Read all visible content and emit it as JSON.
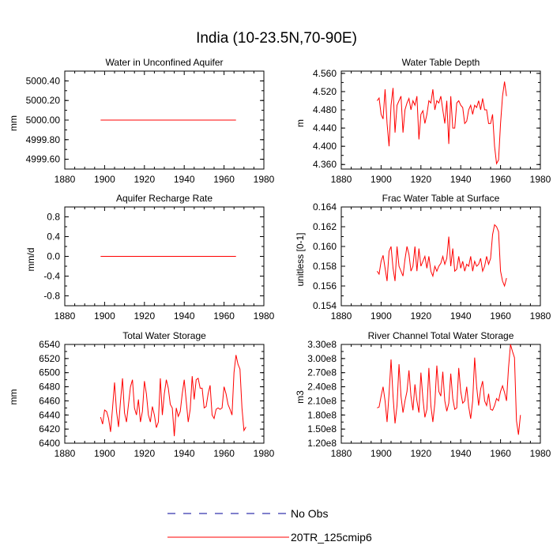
{
  "title": "India (10-23.5N,70-90E)",
  "colors": {
    "model": "#ff0000",
    "obs": "#00009a",
    "axis": "#000000"
  },
  "legend": {
    "obs_label": "No Obs",
    "model_label": "20TR_125cmip6"
  },
  "chart_data": [
    {
      "type": "line",
      "title": "Water in Unconfined Aquifer",
      "ylabel": "mm",
      "xlim": [
        1880,
        1980
      ],
      "ylim": [
        4999.5,
        5000.5
      ],
      "xticks": [
        "1880",
        "1900",
        "1920",
        "1940",
        "1960",
        "1980"
      ],
      "yticks": [
        "4999.60",
        "4999.80",
        "5000.00",
        "5000.20",
        "5000.40"
      ],
      "series": [
        {
          "name": "20TR_125cmip6",
          "x_start": 1898,
          "values": [
            5000,
            5000,
            5000,
            5000,
            5000,
            5000,
            5000,
            5000,
            5000,
            5000,
            5000,
            5000,
            5000,
            5000,
            5000,
            5000,
            5000,
            5000,
            5000,
            5000,
            5000,
            5000,
            5000,
            5000,
            5000,
            5000,
            5000,
            5000,
            5000,
            5000,
            5000,
            5000,
            5000,
            5000,
            5000,
            5000,
            5000,
            5000,
            5000,
            5000,
            5000,
            5000,
            5000,
            5000,
            5000,
            5000,
            5000,
            5000,
            5000,
            5000,
            5000,
            5000,
            5000,
            5000,
            5000,
            5000,
            5000,
            5000,
            5000,
            5000,
            5000,
            5000,
            5000,
            5000,
            5000,
            5000,
            5000,
            5000,
            5000
          ]
        }
      ]
    },
    {
      "type": "line",
      "title": "Water Table Depth",
      "ylabel": "m",
      "xlim": [
        1880,
        1980
      ],
      "ylim": [
        4.35,
        4.565
      ],
      "xticks": [
        "1880",
        "1900",
        "1920",
        "1940",
        "1960",
        "1980"
      ],
      "yticks": [
        "4.360",
        "4.400",
        "4.440",
        "4.480",
        "4.520",
        "4.560"
      ],
      "series": [
        {
          "name": "20TR_125cmip6",
          "x_start": 1898,
          "values": [
            4.5,
            4.506,
            4.47,
            4.46,
            4.525,
            4.45,
            4.4,
            4.49,
            4.528,
            4.43,
            4.49,
            4.5,
            4.51,
            4.43,
            4.48,
            4.495,
            4.505,
            4.48,
            4.5,
            4.49,
            4.51,
            4.415,
            4.47,
            4.478,
            4.45,
            4.47,
            4.5,
            4.495,
            4.525,
            4.48,
            4.5,
            4.495,
            4.51,
            4.48,
            4.45,
            4.5,
            4.405,
            4.51,
            4.44,
            4.44,
            4.495,
            4.5,
            4.49,
            4.485,
            4.45,
            4.455,
            4.48,
            4.49,
            4.47,
            4.49,
            4.485,
            4.5,
            4.48,
            4.505,
            4.48,
            4.48,
            4.45,
            4.45,
            4.47,
            4.4,
            4.362,
            4.37,
            4.45,
            4.51,
            4.542,
            4.51
          ]
        }
      ]
    },
    {
      "type": "line",
      "title": "Aquifer Recharge Rate",
      "ylabel": "mm/d",
      "xlim": [
        1880,
        1980
      ],
      "ylim": [
        -1.0,
        1.0
      ],
      "xticks": [
        "1880",
        "1900",
        "1920",
        "1940",
        "1960",
        "1980"
      ],
      "yticks": [
        "-0.8",
        "-0.4",
        "0.0",
        "0.4",
        "0.8"
      ],
      "series": [
        {
          "name": "20TR_125cmip6",
          "x_start": 1898,
          "values": [
            0,
            0,
            0,
            0,
            0,
            0,
            0,
            0,
            0,
            0,
            0,
            0,
            0,
            0,
            0,
            0,
            0,
            0,
            0,
            0,
            0,
            0,
            0,
            0,
            0,
            0,
            0,
            0,
            0,
            0,
            0,
            0,
            0,
            0,
            0,
            0,
            0,
            0,
            0,
            0,
            0,
            0,
            0,
            0,
            0,
            0,
            0,
            0,
            0,
            0,
            0,
            0,
            0,
            0,
            0,
            0,
            0,
            0,
            0,
            0,
            0,
            0,
            0,
            0,
            0,
            0,
            0,
            0,
            0
          ]
        }
      ]
    },
    {
      "type": "line",
      "title": "Frac Water Table at Surface",
      "ylabel": "unitless [0-1]",
      "xlim": [
        1880,
        1980
      ],
      "ylim": [
        0.154,
        0.164
      ],
      "xticks": [
        "1880",
        "1900",
        "1920",
        "1940",
        "1960",
        "1980"
      ],
      "yticks": [
        "0.154",
        "0.156",
        "0.158",
        "0.160",
        "0.162",
        "0.164"
      ],
      "series": [
        {
          "name": "20TR_125cmip6",
          "x_start": 1898,
          "values": [
            0.1575,
            0.1572,
            0.1585,
            0.1591,
            0.1578,
            0.1565,
            0.1595,
            0.16,
            0.1578,
            0.1565,
            0.16,
            0.158,
            0.1575,
            0.157,
            0.1587,
            0.16,
            0.1592,
            0.1575,
            0.158,
            0.16,
            0.1575,
            0.1598,
            0.158,
            0.1585,
            0.159,
            0.1578,
            0.159,
            0.1575,
            0.157,
            0.158,
            0.1575,
            0.158,
            0.1583,
            0.159,
            0.1582,
            0.1588,
            0.161,
            0.158,
            0.1598,
            0.1575,
            0.1577,
            0.159,
            0.1578,
            0.1585,
            0.1575,
            0.1582,
            0.158,
            0.159,
            0.1575,
            0.1585,
            0.158,
            0.1582,
            0.1588,
            0.1575,
            0.158,
            0.159,
            0.1582,
            0.1588,
            0.1612,
            0.1622,
            0.162,
            0.1615,
            0.1575,
            0.1565,
            0.156,
            0.1568
          ]
        }
      ]
    },
    {
      "type": "line",
      "title": "Total Water Storage",
      "ylabel": "mm",
      "xlim": [
        1880,
        1980
      ],
      "ylim": [
        6400,
        6540
      ],
      "xticks": [
        "1880",
        "1900",
        "1920",
        "1940",
        "1960",
        "1980"
      ],
      "yticks": [
        "6400",
        "6420",
        "6440",
        "6460",
        "6480",
        "6500",
        "6520",
        "6540"
      ],
      "series": [
        {
          "name": "20TR_125cmip6",
          "x_start": 1898,
          "values": [
            6437,
            6427,
            6447,
            6445,
            6435,
            6416,
            6450,
            6486,
            6445,
            6423,
            6460,
            6492,
            6443,
            6430,
            6455,
            6480,
            6490,
            6450,
            6440,
            6462,
            6430,
            6445,
            6488,
            6470,
            6440,
            6430,
            6452,
            6440,
            6422,
            6430,
            6492,
            6440,
            6470,
            6490,
            6478,
            6455,
            6450,
            6410,
            6450,
            6438,
            6445,
            6470,
            6490,
            6460,
            6430,
            6448,
            6495,
            6462,
            6490,
            6492,
            6478,
            6478,
            6450,
            6452,
            6470,
            6482,
            6440,
            6435,
            6448,
            6450,
            6448,
            6450,
            6480,
            6470,
            6455,
            6448,
            6440,
            6500,
            6525,
            6512,
            6505,
            6450,
            6418,
            6423
          ]
        }
      ]
    },
    {
      "type": "line",
      "title": "River Channel Total Water Storage",
      "ylabel": "m3",
      "xlim": [
        1880,
        1980
      ],
      "ylim": [
        120000000.0,
        330000000.0
      ],
      "xticks": [
        "1880",
        "1900",
        "1920",
        "1940",
        "1960",
        "1980"
      ],
      "yticks": [
        "1.20e8",
        "1.50e8",
        "1.80e8",
        "2.10e8",
        "2.40e8",
        "2.70e8",
        "3.00e8",
        "3.30e8"
      ],
      "series": [
        {
          "name": "20TR_125cmip6",
          "x_start": 1898,
          "values": [
            195000000.0,
            197000000.0,
            220000000.0,
            240000000.0,
            210000000.0,
            165000000.0,
            225000000.0,
            298000000.0,
            220000000.0,
            162000000.0,
            200000000.0,
            288000000.0,
            220000000.0,
            185000000.0,
            210000000.0,
            230000000.0,
            275000000.0,
            220000000.0,
            190000000.0,
            245000000.0,
            210000000.0,
            185000000.0,
            270000000.0,
            215000000.0,
            175000000.0,
            192000000.0,
            280000000.0,
            200000000.0,
            165000000.0,
            205000000.0,
            285000000.0,
            230000000.0,
            220000000.0,
            272000000.0,
            210000000.0,
            188000000.0,
            205000000.0,
            268000000.0,
            215000000.0,
            192000000.0,
            195000000.0,
            280000000.0,
            230000000.0,
            205000000.0,
            210000000.0,
            240000000.0,
            198000000.0,
            172000000.0,
            210000000.0,
            302000000.0,
            240000000.0,
            200000000.0,
            235000000.0,
            252000000.0,
            210000000.0,
            200000000.0,
            225000000.0,
            192000000.0,
            190000000.0,
            200000000.0,
            215000000.0,
            210000000.0,
            230000000.0,
            242000000.0,
            228000000.0,
            210000000.0,
            280000000.0,
            330000000.0,
            315000000.0,
            302000000.0,
            168000000.0,
            138000000.0,
            180000000.0
          ]
        }
      ]
    }
  ]
}
